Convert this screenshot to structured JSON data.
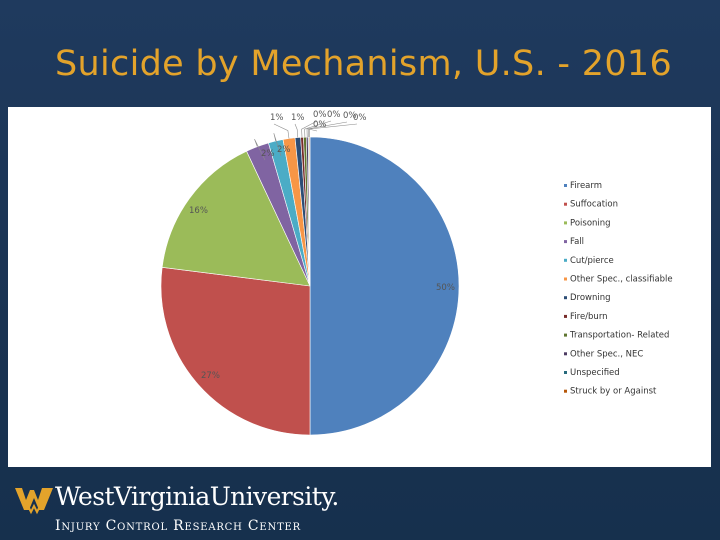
{
  "slide": {
    "title": "Suicide by Mechanism, U.S. - 2016"
  },
  "footer": {
    "university": "WestVirginiaUniversity.",
    "unit": "Injury Control Research Center",
    "logo_icon": "wv-flying-wv-logo-icon"
  },
  "chart_data": {
    "type": "pie",
    "title": "",
    "start_angle": "12 o'clock, clockwise",
    "legend_placement": "right",
    "categories": [
      "Firearm",
      "Suffocation",
      "Poisoning",
      "Fall",
      "Cut/pierce",
      "Other Spec., classifiable",
      "Drowning",
      "Fire/burn",
      "Transportation- Related",
      "Other Spec., NEC",
      "Unspecified",
      "Struck by or Against"
    ],
    "values": [
      50.0,
      27.0,
      16.0,
      2.5,
      1.6,
      1.3,
      0.6,
      0.3,
      0.3,
      0.2,
      0.1,
      0.1
    ],
    "labels": [
      "50%",
      "27%",
      "16%",
      "2%",
      "2%",
      "1%",
      "1%",
      "0%",
      "0%",
      "0%",
      "0%",
      "0%"
    ],
    "colors": [
      "#4f81bd",
      "#c0504d",
      "#9bbb59",
      "#8064a2",
      "#4bacc6",
      "#f79646",
      "#2c4d75",
      "#772c2a",
      "#5f7530",
      "#4d3b62",
      "#276a7c",
      "#b65708"
    ]
  }
}
